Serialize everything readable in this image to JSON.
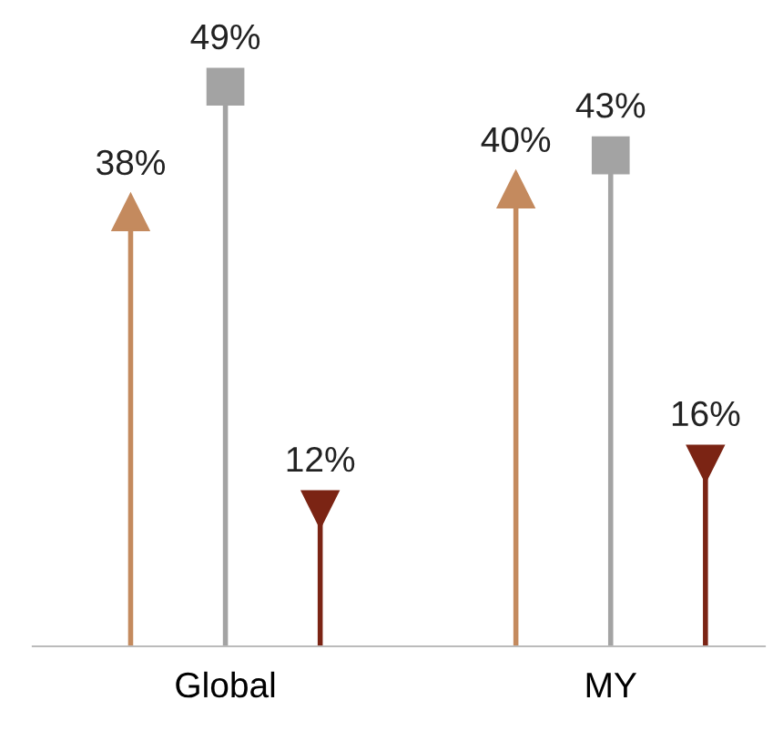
{
  "chart_data": {
    "type": "lollipop",
    "categories": [
      "Global",
      "MY"
    ],
    "series": [
      {
        "color": "#c48a5e",
        "marker": "triangle",
        "values": [
          38,
          40
        ],
        "value_labels": [
          "38%",
          "40%"
        ]
      },
      {
        "color": "#a3a3a3",
        "marker": "square",
        "values": [
          49,
          43
        ],
        "value_labels": [
          "49%",
          "43%"
        ]
      },
      {
        "color": "#7b2414",
        "marker": "triangle_down",
        "values": [
          12,
          16
        ],
        "value_labels": [
          "12%",
          "16%"
        ]
      }
    ],
    "legend": false
  }
}
